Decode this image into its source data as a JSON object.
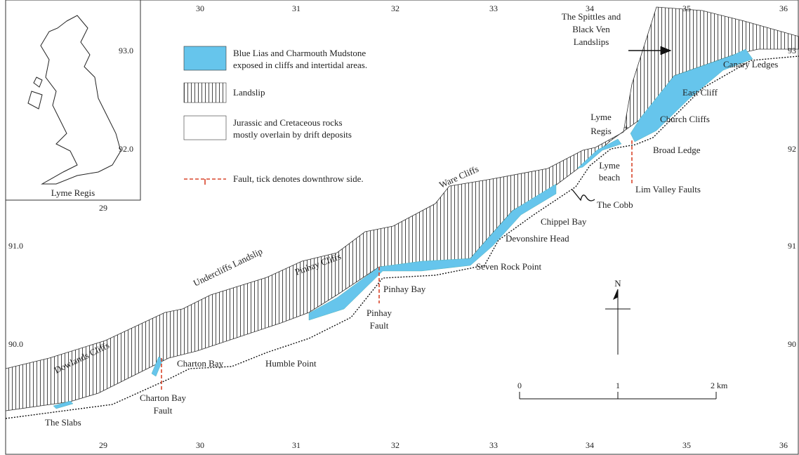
{
  "grid": {
    "top": [
      "30",
      "31",
      "32",
      "33",
      "34",
      "35",
      "36"
    ],
    "bottom": [
      "29",
      "30",
      "31",
      "32",
      "33",
      "34",
      "35",
      "36"
    ],
    "left": [
      "91.0",
      "90.0"
    ],
    "right": [
      "93",
      "92",
      "91",
      "90"
    ]
  },
  "inset": {
    "labels": [
      "93.0",
      "92.0",
      "29"
    ],
    "place": "Lyme Regis"
  },
  "legend": [
    {
      "lines": [
        "Blue Lias and Charmouth Mudstone",
        "exposed in cliffs and intertidal areas."
      ]
    },
    {
      "lines": [
        "Landslip"
      ]
    },
    {
      "lines": [
        "Jurassic and Cretaceous rocks",
        "mostly overlain by drift deposits"
      ]
    },
    {
      "lines": [
        "Fault, tick denotes downthrow side."
      ]
    }
  ],
  "places": [
    {
      "lines": [
        "The Spittles and",
        "Black Ven",
        "Landslips"
      ]
    },
    {
      "lines": [
        "Canary Ledges"
      ]
    },
    {
      "lines": [
        "East Cliff"
      ]
    },
    {
      "lines": [
        "Church Cliffs"
      ]
    },
    {
      "lines": [
        "Lyme",
        "Regis"
      ]
    },
    {
      "lines": [
        "Broad Ledge"
      ]
    },
    {
      "lines": [
        "Lyme",
        "beach"
      ]
    },
    {
      "lines": [
        "Lim Valley Faults"
      ]
    },
    {
      "lines": [
        "The Cobb"
      ]
    },
    {
      "lines": [
        "Chippel Bay"
      ]
    },
    {
      "lines": [
        "Devonshire Head"
      ]
    },
    {
      "lines": [
        "Seven Rock Point"
      ]
    },
    {
      "lines": [
        "Ware Cliffs"
      ]
    },
    {
      "lines": [
        "Pinhay Cliffs"
      ]
    },
    {
      "lines": [
        "Undercliffs Landslip"
      ]
    },
    {
      "lines": [
        "Pinhay Bay"
      ]
    },
    {
      "lines": [
        "Pinhay",
        "Fault"
      ]
    },
    {
      "lines": [
        "Dowlands Cliffs"
      ]
    },
    {
      "lines": [
        "Charton Bay"
      ]
    },
    {
      "lines": [
        "Humble Point"
      ]
    },
    {
      "lines": [
        "Charton Bay",
        "Fault"
      ]
    },
    {
      "lines": [
        "The Slabs"
      ]
    }
  ],
  "scale": [
    "0",
    "1",
    "2 km"
  ],
  "north": "N"
}
